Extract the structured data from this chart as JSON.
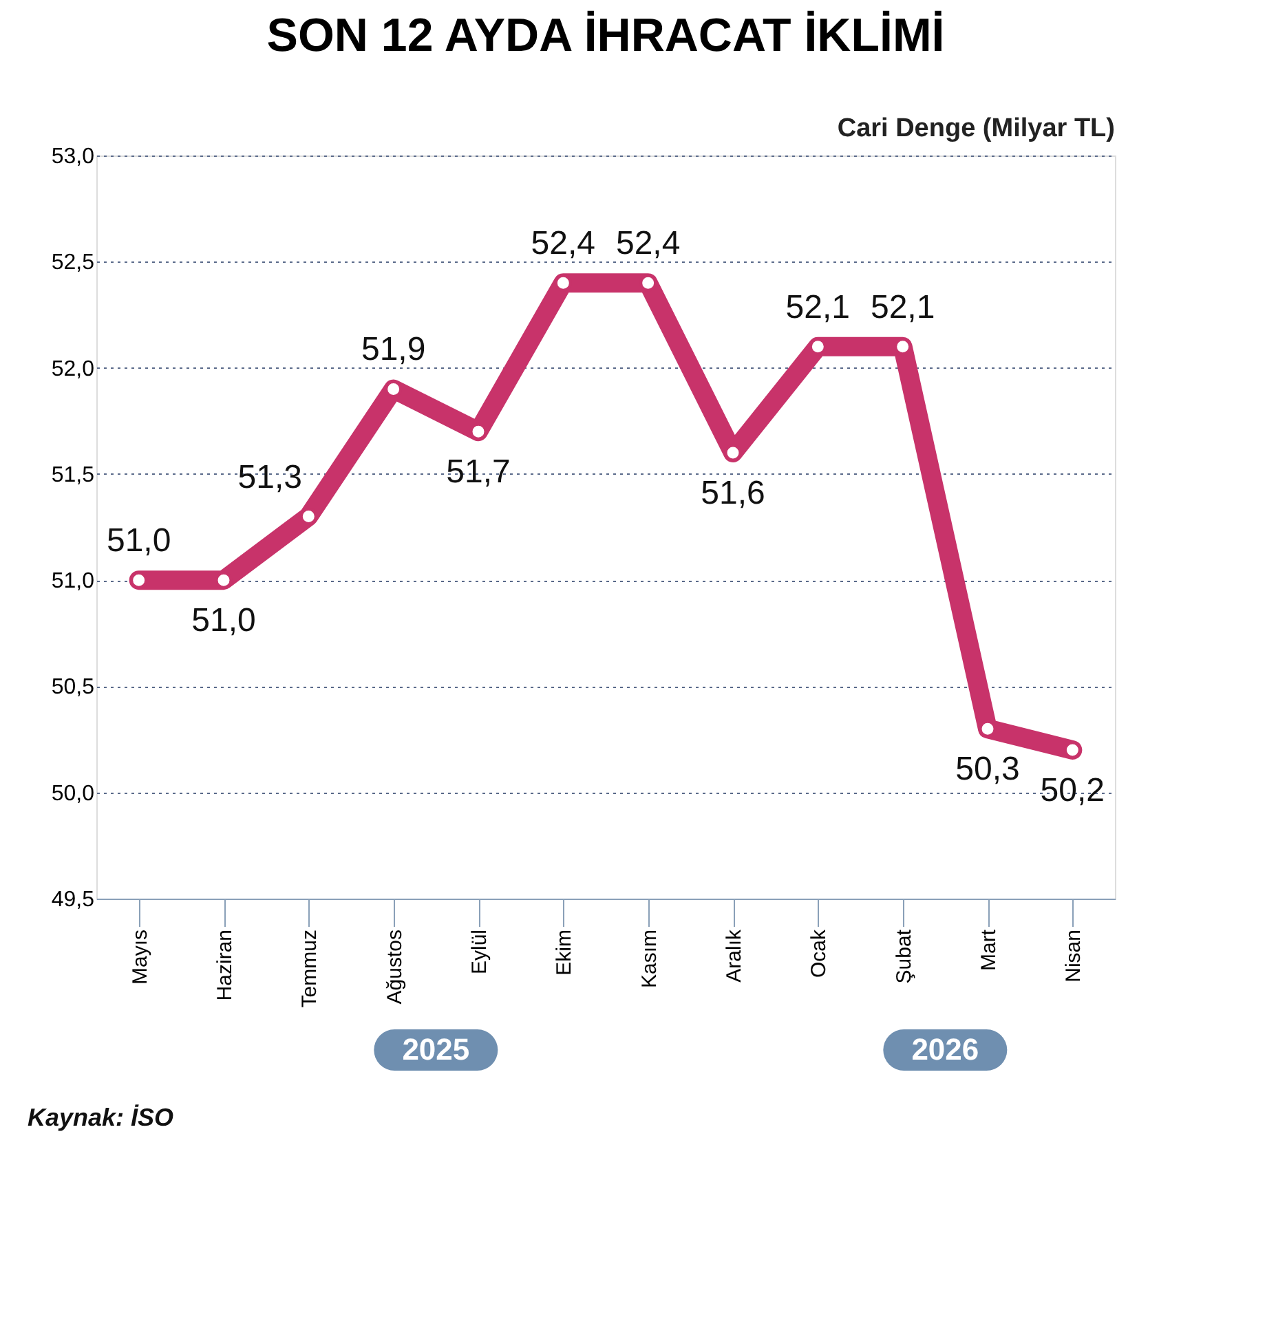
{
  "chart_data": {
    "type": "line",
    "title": "SON 12 AYDA İHRACAT İKLİMİ",
    "ylabel": "Cari Denge (Milyar TL)",
    "categories": [
      "Mayıs",
      "Haziran",
      "Temmuz",
      "Ağustos",
      "Eylül",
      "Ekim",
      "Kasım",
      "Aralık",
      "Ocak",
      "Şubat",
      "Mart",
      "Nisan"
    ],
    "series": [
      {
        "color": "#c8336a",
        "values": [
          51.0,
          51.0,
          51.3,
          51.9,
          51.7,
          52.4,
          52.4,
          51.6,
          52.1,
          52.1,
          50.3,
          50.2
        ],
        "value_labels": [
          "51,0",
          "51,0",
          "51,3",
          "51,9",
          "51,7",
          "52,4",
          "52,4",
          "51,6",
          "52,1",
          "52,1",
          "50,3",
          "50,2"
        ]
      }
    ],
    "ylim": [
      49.5,
      53.0
    ],
    "yticks": [
      {
        "value": 49.5,
        "label": "49,5"
      },
      {
        "value": 50.0,
        "label": "50,0"
      },
      {
        "value": 50.5,
        "label": "50,5"
      },
      {
        "value": 51.0,
        "label": "51,0"
      },
      {
        "value": 51.5,
        "label": "51,5"
      },
      {
        "value": 52.0,
        "label": "52,0"
      },
      {
        "value": 52.5,
        "label": "52,5"
      },
      {
        "value": 53.0,
        "label": "53,0"
      }
    ],
    "grid": "y",
    "marker": "circle",
    "line_style": "solid",
    "legend": false,
    "annotations": [
      "2025",
      "2026",
      "Kaynak: İSO"
    ]
  }
}
